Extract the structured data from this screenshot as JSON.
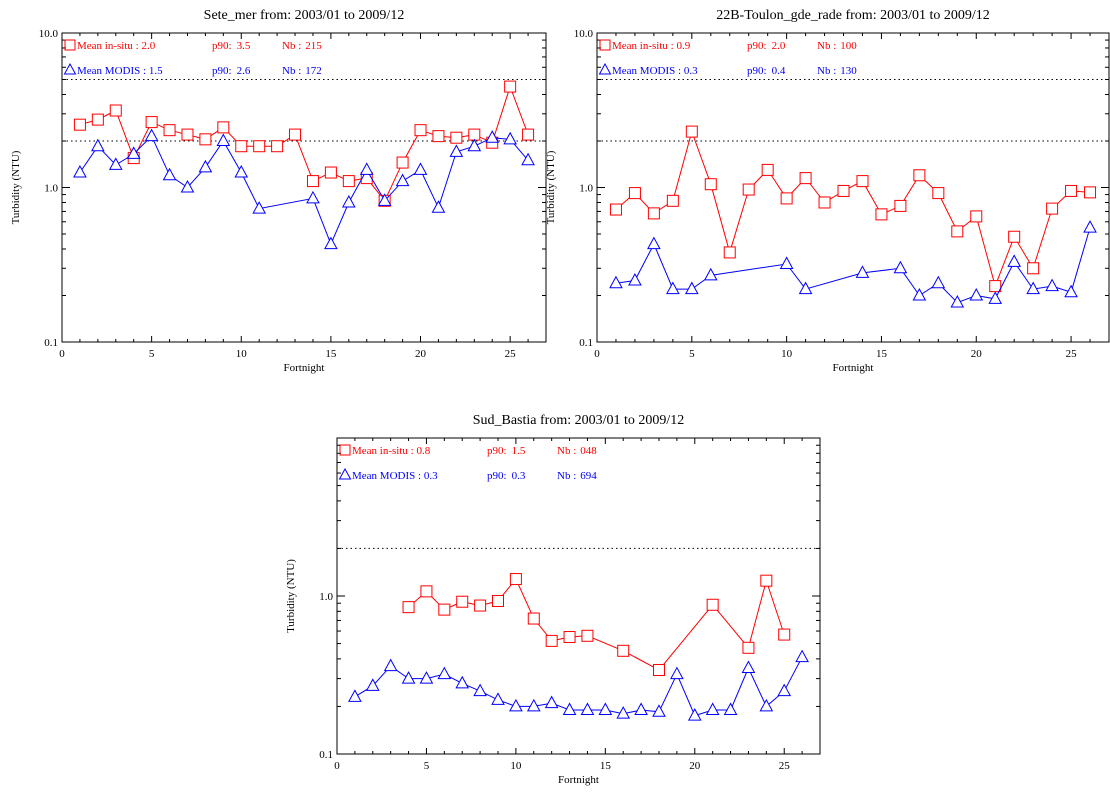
{
  "chart_data": [
    {
      "type": "line",
      "title": "Sete_mer from: 2003/01 to 2009/12",
      "xlabel": "Fortnight",
      "ylabel": "Turbidity (NTU)",
      "xlim": [
        0,
        27
      ],
      "ylim": [
        0.1,
        10.0
      ],
      "yscale": "log",
      "x_ticks": [
        "0",
        "5",
        "10",
        "15",
        "20",
        "25"
      ],
      "y_ticks": [
        "0.1",
        "1.0",
        "10.0"
      ],
      "reference_lines": [
        2.0,
        5.0,
        10.0
      ],
      "legend": [
        {
          "label": "Mean in-situ",
          "sep": " : ",
          "mean": "2.0",
          "p90_label": "p90:",
          "p90": "3.5",
          "nb_label": "Nb :",
          "nb": "215",
          "color": "#ff0000",
          "marker": "square"
        },
        {
          "label": "Mean MODIS",
          "sep": " : ",
          "mean": "1.5",
          "p90_label": "p90:",
          "p90": "2.6",
          "nb_label": "Nb :",
          "nb": "172",
          "color": "#0000ff",
          "marker": "triangle"
        }
      ],
      "series": [
        {
          "name": "Mean in-situ",
          "color": "#ff0000",
          "marker": "square",
          "x": [
            1,
            2,
            3,
            4,
            5,
            6,
            7,
            8,
            9,
            10,
            11,
            12,
            13,
            14,
            15,
            16,
            17,
            18,
            19,
            20,
            21,
            22,
            23,
            24,
            25,
            26
          ],
          "y": [
            2.55,
            2.75,
            3.15,
            1.55,
            2.65,
            2.35,
            2.2,
            2.05,
            2.45,
            1.85,
            1.85,
            1.85,
            2.2,
            1.1,
            1.25,
            1.1,
            1.15,
            0.82,
            1.45,
            2.35,
            2.15,
            2.1,
            2.2,
            1.95,
            4.5,
            2.2
          ]
        },
        {
          "name": "Mean MODIS",
          "color": "#0000ff",
          "marker": "triangle",
          "x": [
            1,
            2,
            3,
            4,
            5,
            6,
            7,
            8,
            9,
            10,
            11,
            14,
            15,
            16,
            17,
            18,
            19,
            20,
            21,
            22,
            23,
            24,
            25,
            26
          ],
          "y": [
            1.25,
            1.85,
            1.4,
            1.65,
            2.15,
            1.2,
            1.0,
            1.35,
            2.0,
            1.25,
            0.73,
            0.85,
            0.43,
            0.8,
            1.3,
            0.82,
            1.1,
            1.3,
            0.74,
            1.7,
            1.85,
            2.1,
            2.05,
            1.5
          ]
        }
      ]
    },
    {
      "type": "line",
      "title": "22B-Toulon_gde_rade from: 2003/01 to 2009/12",
      "xlabel": "Fortnight",
      "ylabel": "Turbidity (NTU)",
      "xlim": [
        0,
        27
      ],
      "ylim": [
        0.1,
        10.0
      ],
      "yscale": "log",
      "x_ticks": [
        "0",
        "5",
        "10",
        "15",
        "20",
        "25"
      ],
      "y_ticks": [
        "0.1",
        "1.0",
        "10.0"
      ],
      "reference_lines": [
        2.0,
        5.0,
        10.0
      ],
      "legend": [
        {
          "label": "Mean in-situ",
          "sep": " : ",
          "mean": "0.9",
          "p90_label": "p90:",
          "p90": "2.0",
          "nb_label": "Nb :",
          "nb": "100",
          "color": "#ff0000",
          "marker": "square"
        },
        {
          "label": "Mean MODIS",
          "sep": " : ",
          "mean": "0.3",
          "p90_label": "p90:",
          "p90": "0.4",
          "nb_label": "Nb :",
          "nb": "130",
          "color": "#0000ff",
          "marker": "triangle"
        }
      ],
      "series": [
        {
          "name": "Mean in-situ",
          "color": "#ff0000",
          "marker": "square",
          "x": [
            1,
            2,
            3,
            4,
            5,
            6,
            7,
            8,
            9,
            10,
            11,
            12,
            13,
            14,
            15,
            16,
            17,
            18,
            19,
            20,
            21,
            22,
            23,
            24,
            25,
            26
          ],
          "y": [
            0.72,
            0.92,
            0.68,
            0.82,
            2.3,
            1.05,
            0.38,
            0.97,
            1.3,
            0.85,
            1.15,
            0.8,
            0.95,
            1.1,
            0.67,
            0.76,
            1.2,
            0.92,
            0.52,
            0.65,
            0.23,
            0.48,
            0.3,
            0.73,
            0.95,
            0.93
          ]
        },
        {
          "name": "Mean MODIS",
          "color": "#0000ff",
          "marker": "triangle",
          "x": [
            1,
            2,
            3,
            4,
            5,
            6,
            10,
            11,
            14,
            16,
            17,
            18,
            19,
            20,
            21,
            22,
            23,
            24,
            25,
            26
          ],
          "y": [
            0.24,
            0.25,
            0.43,
            0.22,
            0.22,
            0.27,
            0.32,
            0.22,
            0.28,
            0.3,
            0.2,
            0.24,
            0.18,
            0.2,
            0.19,
            0.33,
            0.22,
            0.23,
            0.21,
            0.55
          ]
        }
      ]
    },
    {
      "type": "line",
      "title": "Sud_Bastia from: 2003/01 to 2009/12",
      "xlabel": "Fortnight",
      "ylabel": "Turbidity (NTU)",
      "xlim": [
        0,
        27
      ],
      "ylim": [
        0.1,
        10.0
      ],
      "yscale": "log",
      "x_ticks": [
        "0",
        "5",
        "10",
        "15",
        "20",
        "25"
      ],
      "y_ticks": [
        "0.1",
        "1.0"
      ],
      "reference_lines": [
        2.0
      ],
      "legend": [
        {
          "label": "Mean in-situ",
          "sep": "   : ",
          "mean": "0.8",
          "p90_label": "p90:",
          "p90": "1.5",
          "nb_label": "Nb :",
          "nb": "048",
          "color": "#ff0000",
          "marker": "square"
        },
        {
          "label": "Mean MODIS",
          "sep": " : ",
          "mean": "0.3",
          "p90_label": "p90:",
          "p90": "0.3",
          "nb_label": "Nb :",
          "nb": "694",
          "color": "#0000ff",
          "marker": "triangle"
        }
      ],
      "series": [
        {
          "name": "Mean in-situ",
          "color": "#ff0000",
          "marker": "square",
          "x": [
            4,
            5,
            6,
            7,
            8,
            9,
            10,
            11,
            12,
            13,
            14,
            16,
            18,
            21,
            23,
            24,
            25
          ],
          "y": [
            0.85,
            1.07,
            0.82,
            0.92,
            0.87,
            0.93,
            1.28,
            0.72,
            0.52,
            0.55,
            0.56,
            0.45,
            0.34,
            0.88,
            0.47,
            1.25,
            0.57
          ]
        },
        {
          "name": "Mean MODIS",
          "color": "#0000ff",
          "marker": "triangle",
          "x": [
            1,
            2,
            3,
            4,
            5,
            6,
            7,
            8,
            9,
            10,
            11,
            12,
            13,
            14,
            15,
            16,
            17,
            18,
            19,
            20,
            21,
            22,
            23,
            24,
            25,
            26
          ],
          "y": [
            0.23,
            0.27,
            0.36,
            0.3,
            0.3,
            0.32,
            0.28,
            0.25,
            0.22,
            0.2,
            0.2,
            0.21,
            0.19,
            0.19,
            0.19,
            0.18,
            0.19,
            0.185,
            0.32,
            0.175,
            0.19,
            0.19,
            0.35,
            0.2,
            0.25,
            0.41
          ]
        }
      ]
    }
  ]
}
